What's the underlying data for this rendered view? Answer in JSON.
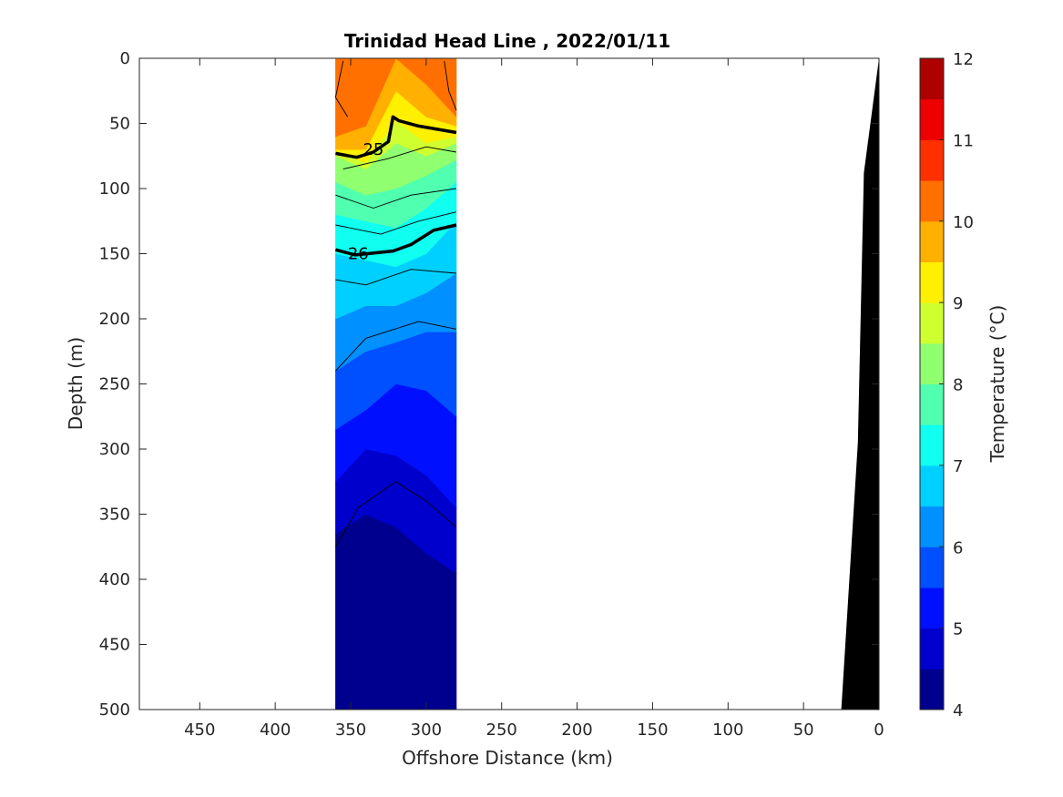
{
  "chart_data": {
    "type": "heatmap",
    "title": "Trinidad Head Line , 2022/01/11",
    "xlabel": "Offshore Distance (km)",
    "ylabel": "Depth (m)",
    "colorbar_label": "Temperature (°C)",
    "x_axis": {
      "range": [
        490,
        0
      ],
      "reversed": true,
      "ticks": [
        450,
        400,
        350,
        300,
        250,
        200,
        150,
        100,
        50,
        0
      ]
    },
    "y_axis": {
      "range": [
        0,
        500
      ],
      "reversed": true,
      "ticks": [
        0,
        50,
        100,
        150,
        200,
        250,
        300,
        350,
        400,
        450,
        500
      ]
    },
    "colorbar": {
      "range": [
        4,
        12
      ],
      "ticks": [
        4,
        5,
        6,
        7,
        8,
        9,
        10,
        11,
        12
      ],
      "levels": [
        4,
        4.5,
        5,
        5.5,
        6,
        6.5,
        7,
        7.5,
        8,
        8.5,
        9,
        9.5,
        10,
        10.5,
        11,
        11.5,
        12
      ],
      "colors": [
        "#00008f",
        "#0000cc",
        "#0010ff",
        "#0050ff",
        "#0090ff",
        "#00d0ff",
        "#10fff0",
        "#50ffb0",
        "#90ff70",
        "#d0ff30",
        "#ffef00",
        "#ffb000",
        "#ff7000",
        "#ff3000",
        "#ef0000",
        "#af0000"
      ]
    },
    "data_columns": [
      {
        "x": 360,
        "isotherm_depths": [
          415,
          365,
          325,
          285,
          240,
          200,
          150,
          120,
          95,
          75,
          72,
          70,
          60
        ]
      },
      {
        "x": 340,
        "isotherm_depths": [
          470,
          350,
          300,
          270,
          225,
          190,
          155,
          125,
          105,
          85,
          80,
          70,
          52
        ]
      },
      {
        "x": 320,
        "isotherm_depths": [
          478,
          360,
          305,
          250,
          218,
          190,
          160,
          130,
          100,
          65,
          48,
          25,
          0
        ]
      },
      {
        "x": 300,
        "isotherm_depths": [
          485,
          380,
          320,
          255,
          210,
          180,
          150,
          115,
          90,
          75,
          65,
          45,
          20
        ]
      },
      {
        "x": 280,
        "isotherm_depths": [
          470,
          395,
          345,
          275,
          210,
          165,
          125,
          95,
          78,
          65,
          60,
          52,
          45
        ]
      }
    ],
    "data_x_range": [
      360,
      280
    ],
    "contour_lines": [
      {
        "kind": "thin",
        "points": [
          [
            360,
            375
          ],
          [
            345,
            345
          ],
          [
            320,
            325
          ],
          [
            300,
            340
          ],
          [
            280,
            360
          ]
        ]
      },
      {
        "kind": "thin",
        "points": [
          [
            360,
            240
          ],
          [
            340,
            215
          ],
          [
            305,
            202
          ],
          [
            280,
            208
          ]
        ]
      },
      {
        "kind": "thin",
        "points": [
          [
            360,
            170
          ],
          [
            340,
            174
          ],
          [
            310,
            162
          ],
          [
            280,
            165
          ]
        ]
      },
      {
        "kind": "thin",
        "points": [
          [
            360,
            128
          ],
          [
            330,
            135
          ],
          [
            305,
            125
          ],
          [
            280,
            118
          ]
        ]
      },
      {
        "kind": "thin",
        "points": [
          [
            360,
            105
          ],
          [
            335,
            115
          ],
          [
            310,
            105
          ],
          [
            280,
            100
          ]
        ]
      },
      {
        "kind": "thin",
        "points": [
          [
            355,
            85
          ],
          [
            325,
            77
          ],
          [
            300,
            68
          ],
          [
            280,
            72
          ]
        ]
      },
      {
        "kind": "thin",
        "points": [
          [
            355,
            2
          ],
          [
            360,
            30
          ],
          [
            352,
            45
          ]
        ]
      },
      {
        "kind": "thin",
        "points": [
          [
            288,
            2
          ],
          [
            285,
            25
          ],
          [
            280,
            40
          ]
        ]
      },
      {
        "kind": "thick",
        "label": "25",
        "label_at": [
          335,
          70
        ],
        "points": [
          [
            360,
            73
          ],
          [
            346,
            76
          ],
          [
            335,
            72
          ],
          [
            325,
            64
          ],
          [
            322,
            45
          ],
          [
            318,
            48
          ],
          [
            305,
            52
          ],
          [
            280,
            57
          ]
        ]
      },
      {
        "kind": "thick",
        "label": "26",
        "label_at": [
          345,
          150
        ],
        "points": [
          [
            360,
            147
          ],
          [
            347,
            151
          ],
          [
            322,
            148
          ],
          [
            310,
            143
          ],
          [
            295,
            132
          ],
          [
            280,
            128
          ]
        ]
      }
    ],
    "bathymetry": {
      "color": "#000000",
      "points": [
        [
          25,
          500
        ],
        [
          14,
          295
        ],
        [
          10,
          88
        ],
        [
          0,
          0
        ]
      ]
    }
  }
}
